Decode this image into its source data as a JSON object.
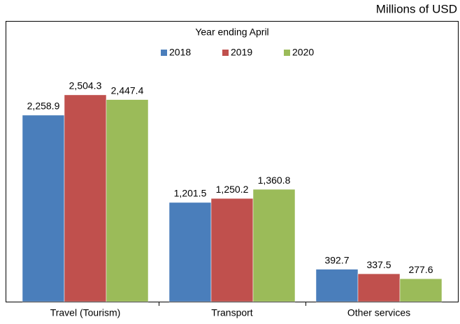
{
  "chart_data": {
    "type": "bar",
    "unit_label": "Millions of USD",
    "legend_title": "Year ending April",
    "categories": [
      "Travel (Tourism)",
      "Transport",
      "Other services"
    ],
    "series": [
      {
        "name": "2018",
        "color": "#4a7ebb",
        "values": [
          2258.9,
          1201.5,
          392.7
        ],
        "value_labels": [
          "2,258.9",
          "1,201.5",
          "392.7"
        ]
      },
      {
        "name": "2019",
        "color": "#c0504d",
        "values": [
          2504.3,
          1250.2,
          337.5
        ],
        "value_labels": [
          "2,504.3",
          "1,250.2",
          "337.5"
        ]
      },
      {
        "name": "2020",
        "color": "#9bbb59",
        "values": [
          2447.4,
          1360.8,
          277.6
        ],
        "value_labels": [
          "2,447.4",
          "1,360.8",
          "277.6"
        ]
      }
    ],
    "ylim": [
      0,
      3400
    ],
    "legend": "top"
  }
}
